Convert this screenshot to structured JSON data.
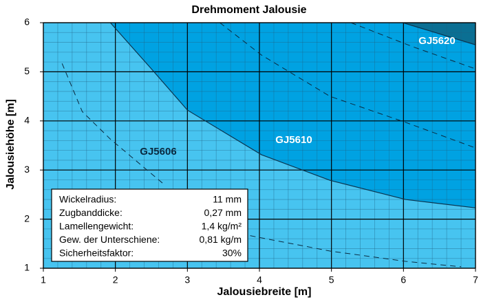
{
  "chart_data": {
    "type": "area",
    "title": "Drehmoment Jalousie",
    "xlabel": "Jalousiebreite [m]",
    "ylabel": "Jalousiehöhe [m]",
    "xlim": [
      1,
      7
    ],
    "ylim": [
      1,
      6
    ],
    "xticks": [
      1,
      2,
      3,
      4,
      5,
      6,
      7
    ],
    "yticks": [
      1,
      2,
      3,
      4,
      5,
      6
    ],
    "grid": true,
    "series": [
      {
        "name": "GJ5606",
        "color": "#47c4f0"
      },
      {
        "name": "GJ5610",
        "color": "#00a2e2",
        "x": [
          1.93,
          2.5,
          3.0,
          4.03,
          4.98,
          6.03,
          7
        ],
        "values": [
          6,
          5.06,
          4.22,
          3.31,
          2.79,
          2.4,
          2.23
        ]
      },
      {
        "name": "GJ5620",
        "color": "#0b6f93",
        "x": [
          5.99,
          7
        ],
        "values": [
          6,
          5.55
        ]
      }
    ],
    "dashed_lines": [
      {
        "x": [
          1.26,
          1.54,
          1.93,
          2.69
        ],
        "values": [
          5.17,
          4.19,
          3.63,
          2.69
        ]
      },
      {
        "x": [
          3.45,
          4.03,
          4.98,
          6.03,
          7
        ],
        "values": [
          6,
          5.34,
          4.5,
          3.97,
          3.45
        ]
      },
      {
        "x": [
          5.27,
          6.13,
          7
        ],
        "values": [
          6,
          5.51,
          5.06
        ]
      },
      {
        "x": [
          3.74,
          4.98,
          6.03,
          6.8
        ],
        "values": [
          1.7,
          1.35,
          1.14,
          1.03
        ]
      }
    ],
    "table": [
      [
        "Wickelradius:",
        "11 mm"
      ],
      [
        "Zugbanddicke:",
        "0,27 mm"
      ],
      [
        "Lamellengewicht:",
        "1,4 kg/m²"
      ],
      [
        "Gew. der Unterschiene:",
        "0,81 kg/m"
      ],
      [
        "Sicherheitsfaktor:",
        "30%"
      ]
    ]
  }
}
